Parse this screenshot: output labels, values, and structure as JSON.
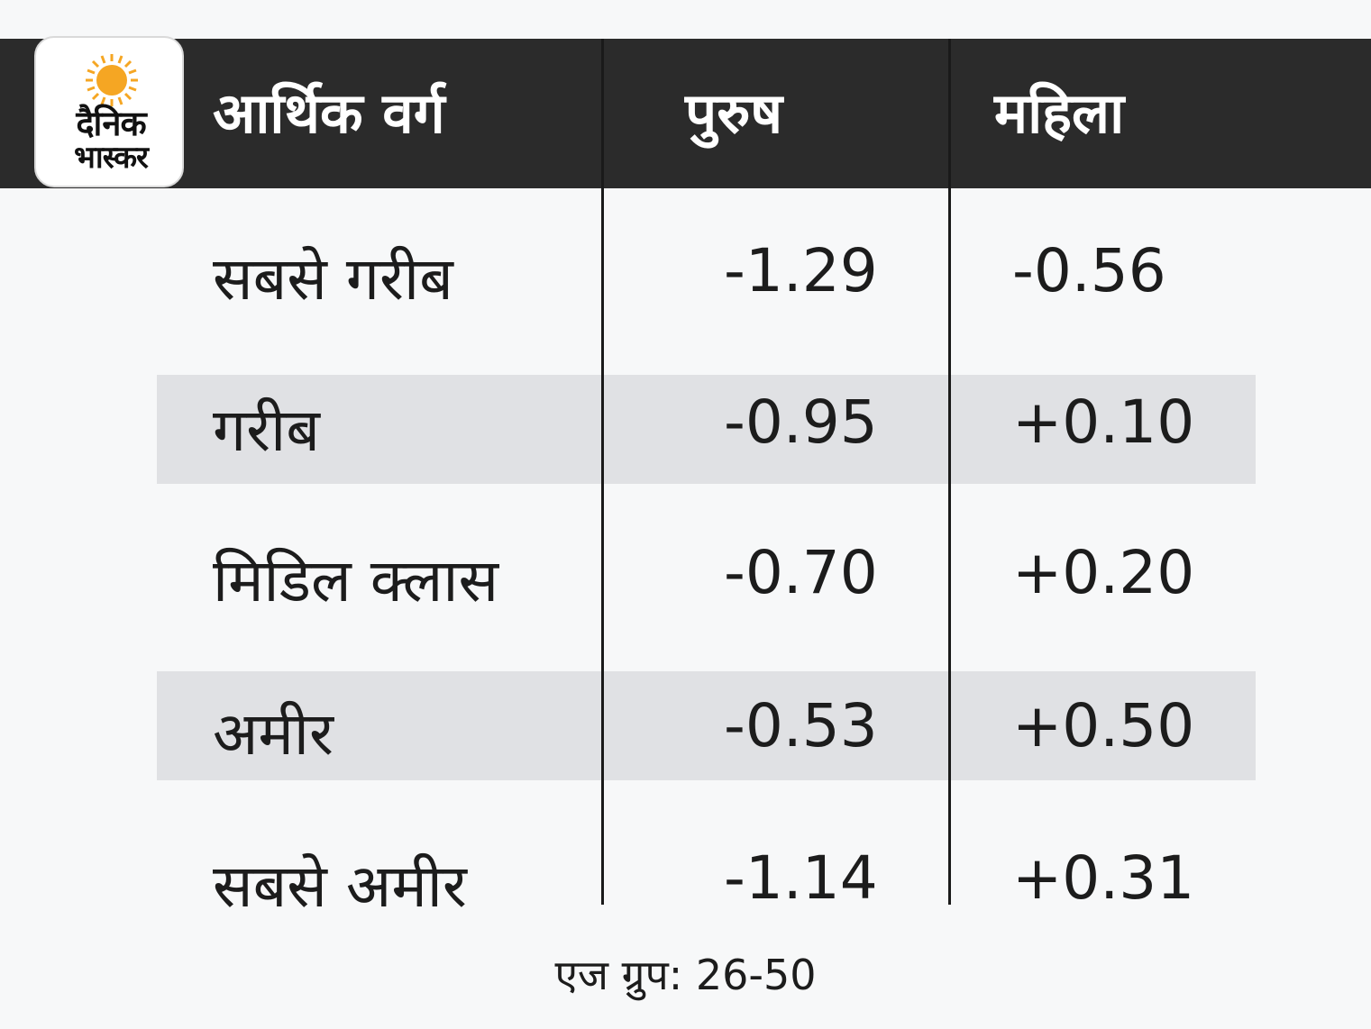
{
  "logo": {
    "word1": "दैनिक",
    "word2": "भास्कर",
    "sun_color": "#f5a623"
  },
  "colors": {
    "header_bg": "#2b2b2b",
    "band_bg": "#e0e1e4",
    "page_bg": "#f7f8f9"
  },
  "chart_data": {
    "type": "table",
    "columns": [
      "आर्थिक वर्ग",
      "पुरुष",
      "महिला"
    ],
    "rows": [
      {
        "label": "सबसे गरीब",
        "men": "-1.29",
        "women": "-0.56"
      },
      {
        "label": "गरीब",
        "men": "-0.95",
        "women": "+0.10"
      },
      {
        "label": "मिडिल क्लास",
        "men": "-0.70",
        "women": "+0.20"
      },
      {
        "label": "अमीर",
        "men": "-0.53",
        "women": "+0.50"
      },
      {
        "label": "सबसे अमीर",
        "men": "-1.14",
        "women": "+0.31"
      }
    ],
    "footnote": "एज ग्रुप: 26-50"
  }
}
